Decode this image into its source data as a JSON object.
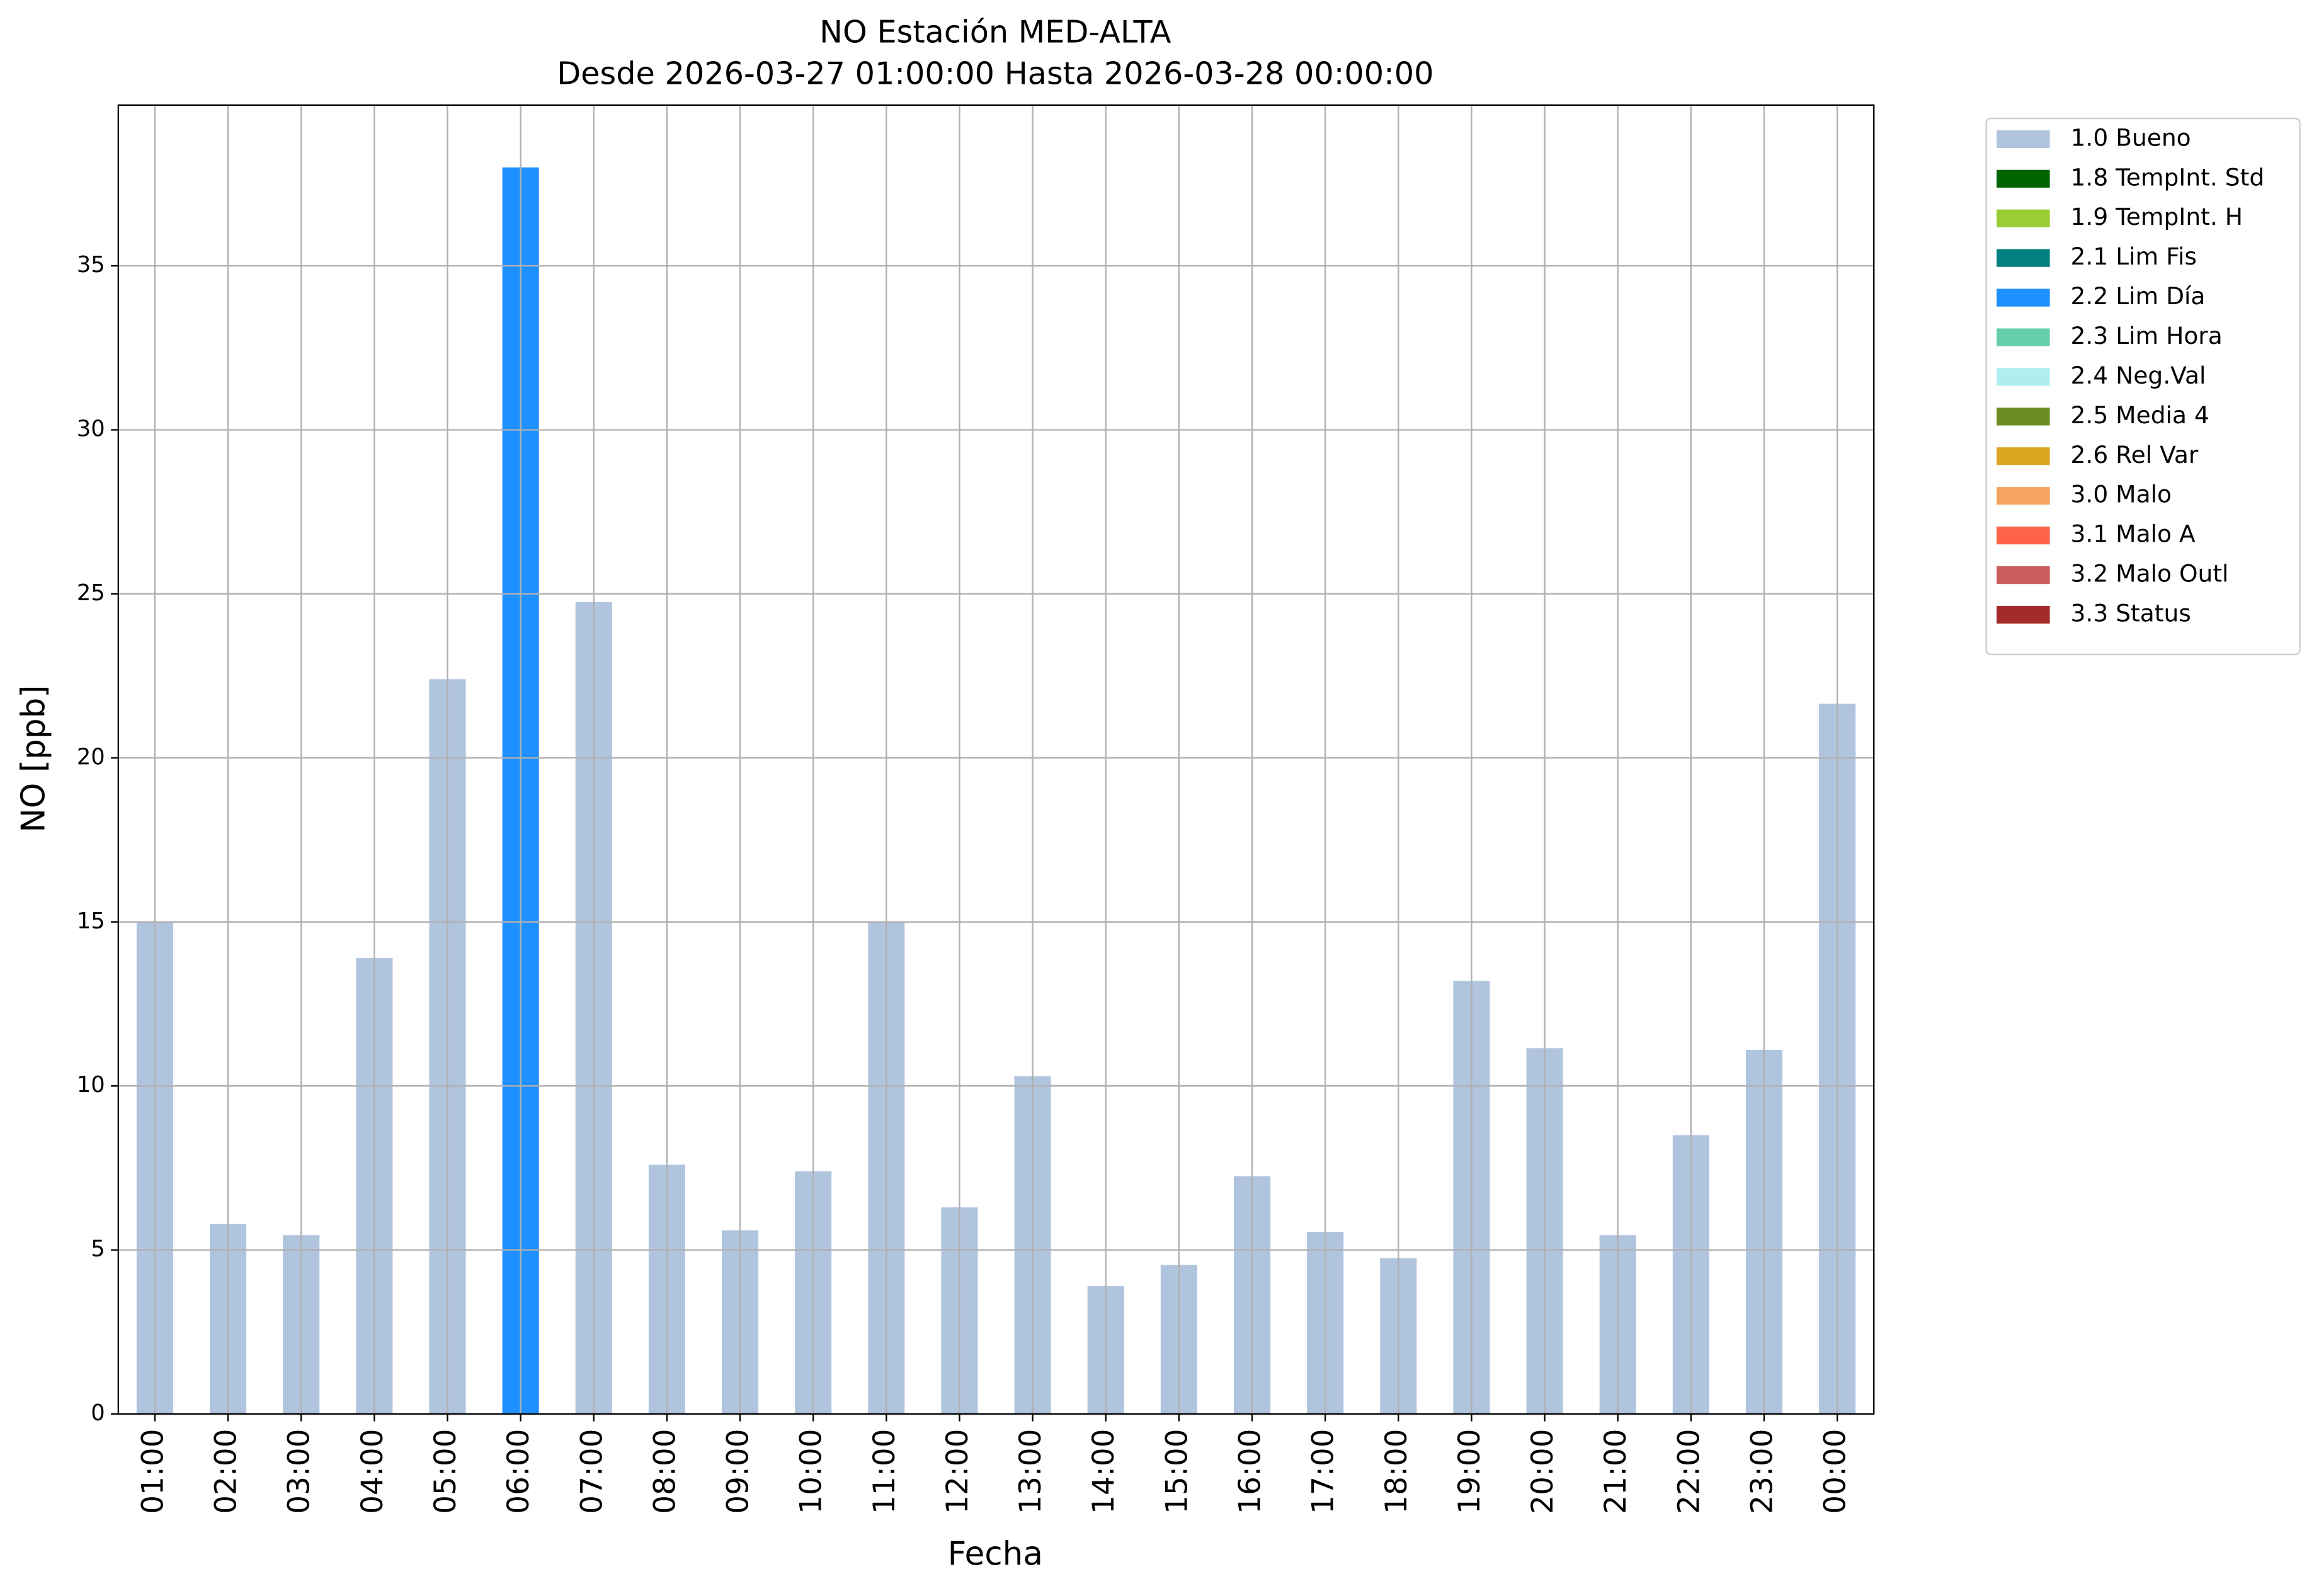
{
  "chart_data": {
    "type": "stacked_bar",
    "title": "NO Estación MED-ALTA",
    "subtitle": "Desde 2026-03-27 01:00:00 Hasta 2026-03-28 00:00:00",
    "x_label": "Fecha",
    "y_label": "NO [ppb]",
    "categories": [
      "01:00",
      "02:00",
      "03:00",
      "04:00",
      "05:00",
      "06:00",
      "07:00",
      "08:00",
      "09:00",
      "10:00",
      "11:00",
      "12:00",
      "13:00",
      "14:00",
      "15:00",
      "16:00",
      "17:00",
      "18:00",
      "19:00",
      "20:00",
      "21:00",
      "22:00",
      "23:00",
      "00:00"
    ],
    "series": [
      {
        "name": "1.0 Bueno",
        "color": "#b0c4de",
        "values": [
          15.0,
          5.8,
          5.45,
          13.9,
          22.4,
          null,
          24.75,
          7.6,
          5.6,
          7.4,
          15.0,
          6.3,
          10.3,
          3.9,
          4.55,
          7.25,
          5.55,
          4.75,
          13.2,
          11.15,
          5.45,
          8.5,
          11.1,
          21.65
        ]
      },
      {
        "name": "1.8 TempInt. Std",
        "color": "#006400",
        "values": [
          null,
          null,
          null,
          null,
          null,
          null,
          null,
          null,
          null,
          null,
          null,
          null,
          null,
          null,
          null,
          null,
          null,
          null,
          null,
          null,
          null,
          null,
          null,
          null
        ]
      },
      {
        "name": "1.9 TempInt. H",
        "color": "#9acd32",
        "values": [
          null,
          null,
          null,
          null,
          null,
          null,
          null,
          null,
          null,
          null,
          null,
          null,
          null,
          null,
          null,
          null,
          null,
          null,
          null,
          null,
          null,
          null,
          null,
          null
        ]
      },
      {
        "name": "2.1 Lim Fis",
        "color": "#008080",
        "values": [
          null,
          null,
          null,
          null,
          null,
          null,
          null,
          null,
          null,
          null,
          null,
          null,
          null,
          null,
          null,
          null,
          null,
          null,
          null,
          null,
          null,
          null,
          null,
          null
        ]
      },
      {
        "name": "2.2 Lim Día",
        "color": "#1e90ff",
        "values": [
          null,
          null,
          null,
          null,
          null,
          38.0,
          null,
          null,
          null,
          null,
          null,
          null,
          null,
          null,
          null,
          null,
          null,
          null,
          null,
          null,
          null,
          null,
          null,
          null
        ]
      },
      {
        "name": "2.3 Lim Hora",
        "color": "#66cdaa",
        "values": [
          null,
          null,
          null,
          null,
          null,
          null,
          null,
          null,
          null,
          null,
          null,
          null,
          null,
          null,
          null,
          null,
          null,
          null,
          null,
          null,
          null,
          null,
          null,
          null
        ]
      },
      {
        "name": "2.4 Neg.Val",
        "color": "#afeeee",
        "values": [
          null,
          null,
          null,
          null,
          null,
          null,
          null,
          null,
          null,
          null,
          null,
          null,
          null,
          null,
          null,
          null,
          null,
          null,
          null,
          null,
          null,
          null,
          null,
          null
        ]
      },
      {
        "name": "2.5 Media 4",
        "color": "#6b8e23",
        "values": [
          null,
          null,
          null,
          null,
          null,
          null,
          null,
          null,
          null,
          null,
          null,
          null,
          null,
          null,
          null,
          null,
          null,
          null,
          null,
          null,
          null,
          null,
          null,
          null
        ]
      },
      {
        "name": "2.6 Rel Var",
        "color": "#daa520",
        "values": [
          null,
          null,
          null,
          null,
          null,
          null,
          null,
          null,
          null,
          null,
          null,
          null,
          null,
          null,
          null,
          null,
          null,
          null,
          null,
          null,
          null,
          null,
          null,
          null
        ]
      },
      {
        "name": "3.0 Malo",
        "color": "#f4a460",
        "values": [
          null,
          null,
          null,
          null,
          null,
          null,
          null,
          null,
          null,
          null,
          null,
          null,
          null,
          null,
          null,
          null,
          null,
          null,
          null,
          null,
          null,
          null,
          null,
          null
        ]
      },
      {
        "name": "3.1 Malo A",
        "color": "#ff6347",
        "values": [
          null,
          null,
          null,
          null,
          null,
          null,
          null,
          null,
          null,
          null,
          null,
          null,
          null,
          null,
          null,
          null,
          null,
          null,
          null,
          null,
          null,
          null,
          null,
          null
        ]
      },
      {
        "name": "3.2 Malo Outl",
        "color": "#cd5c5c",
        "values": [
          null,
          null,
          null,
          null,
          null,
          null,
          null,
          null,
          null,
          null,
          null,
          null,
          null,
          null,
          null,
          null,
          null,
          null,
          null,
          null,
          null,
          null,
          null,
          null
        ]
      },
      {
        "name": "3.3 Status",
        "color": "#a52a2a",
        "values": [
          null,
          null,
          null,
          null,
          null,
          null,
          null,
          null,
          null,
          null,
          null,
          null,
          null,
          null,
          null,
          null,
          null,
          null,
          null,
          null,
          null,
          null,
          null,
          null
        ]
      }
    ],
    "ylim": [
      0,
      39.9
    ],
    "yticks": [
      0,
      5,
      10,
      15,
      20,
      25,
      30,
      35
    ],
    "grid": true,
    "legend": "outside-right"
  }
}
